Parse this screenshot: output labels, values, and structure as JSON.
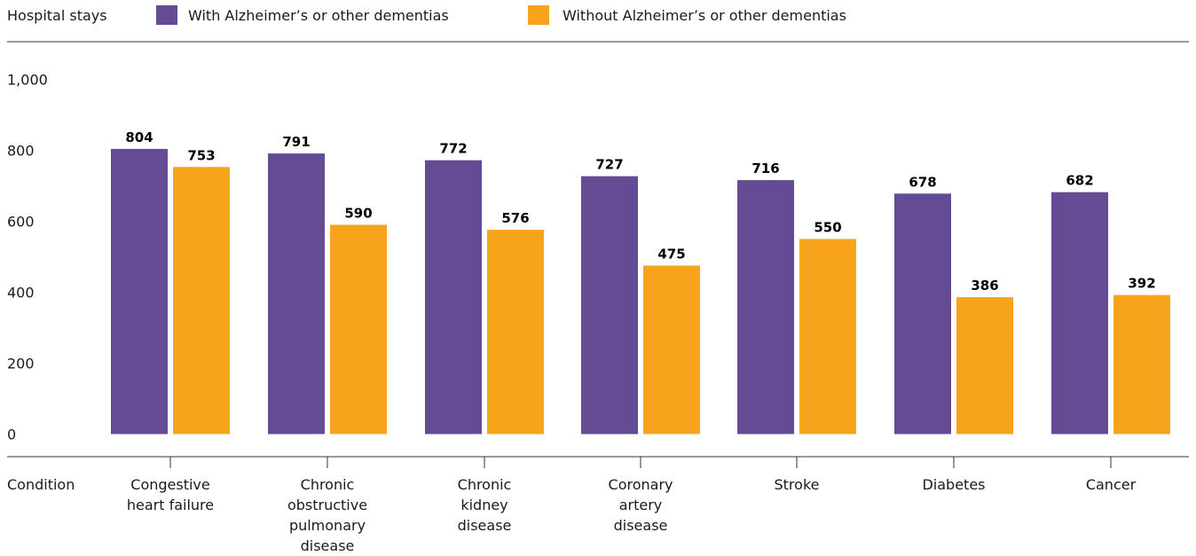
{
  "chart_data": {
    "type": "bar",
    "ylabel": "Hospital stays",
    "xlabel": "Condition",
    "ylim": [
      0,
      1000
    ],
    "yticks": [
      "0",
      "200",
      "400",
      "600",
      "800",
      "1,000"
    ],
    "ytick_values": [
      0,
      200,
      400,
      600,
      800,
      1000
    ],
    "categories": [
      [
        "Congestive",
        "heart failure"
      ],
      [
        "Chronic",
        "obstructive",
        "pulmonary",
        "disease"
      ],
      [
        "Chronic",
        "kidney",
        "disease"
      ],
      [
        "Coronary",
        "artery",
        "disease"
      ],
      [
        "Stroke"
      ],
      [
        "Diabetes"
      ],
      [
        "Cancer"
      ]
    ],
    "series": [
      {
        "name": "With Alzheimer’s or other dementias",
        "color": "#654a94",
        "values": [
          804,
          791,
          772,
          727,
          716,
          678,
          682
        ]
      },
      {
        "name": "Without Alzheimer’s or other dementias",
        "color": "#f7a41c",
        "values": [
          753,
          590,
          576,
          475,
          550,
          386,
          392
        ]
      }
    ],
    "legend_position": "top",
    "grid": false
  }
}
